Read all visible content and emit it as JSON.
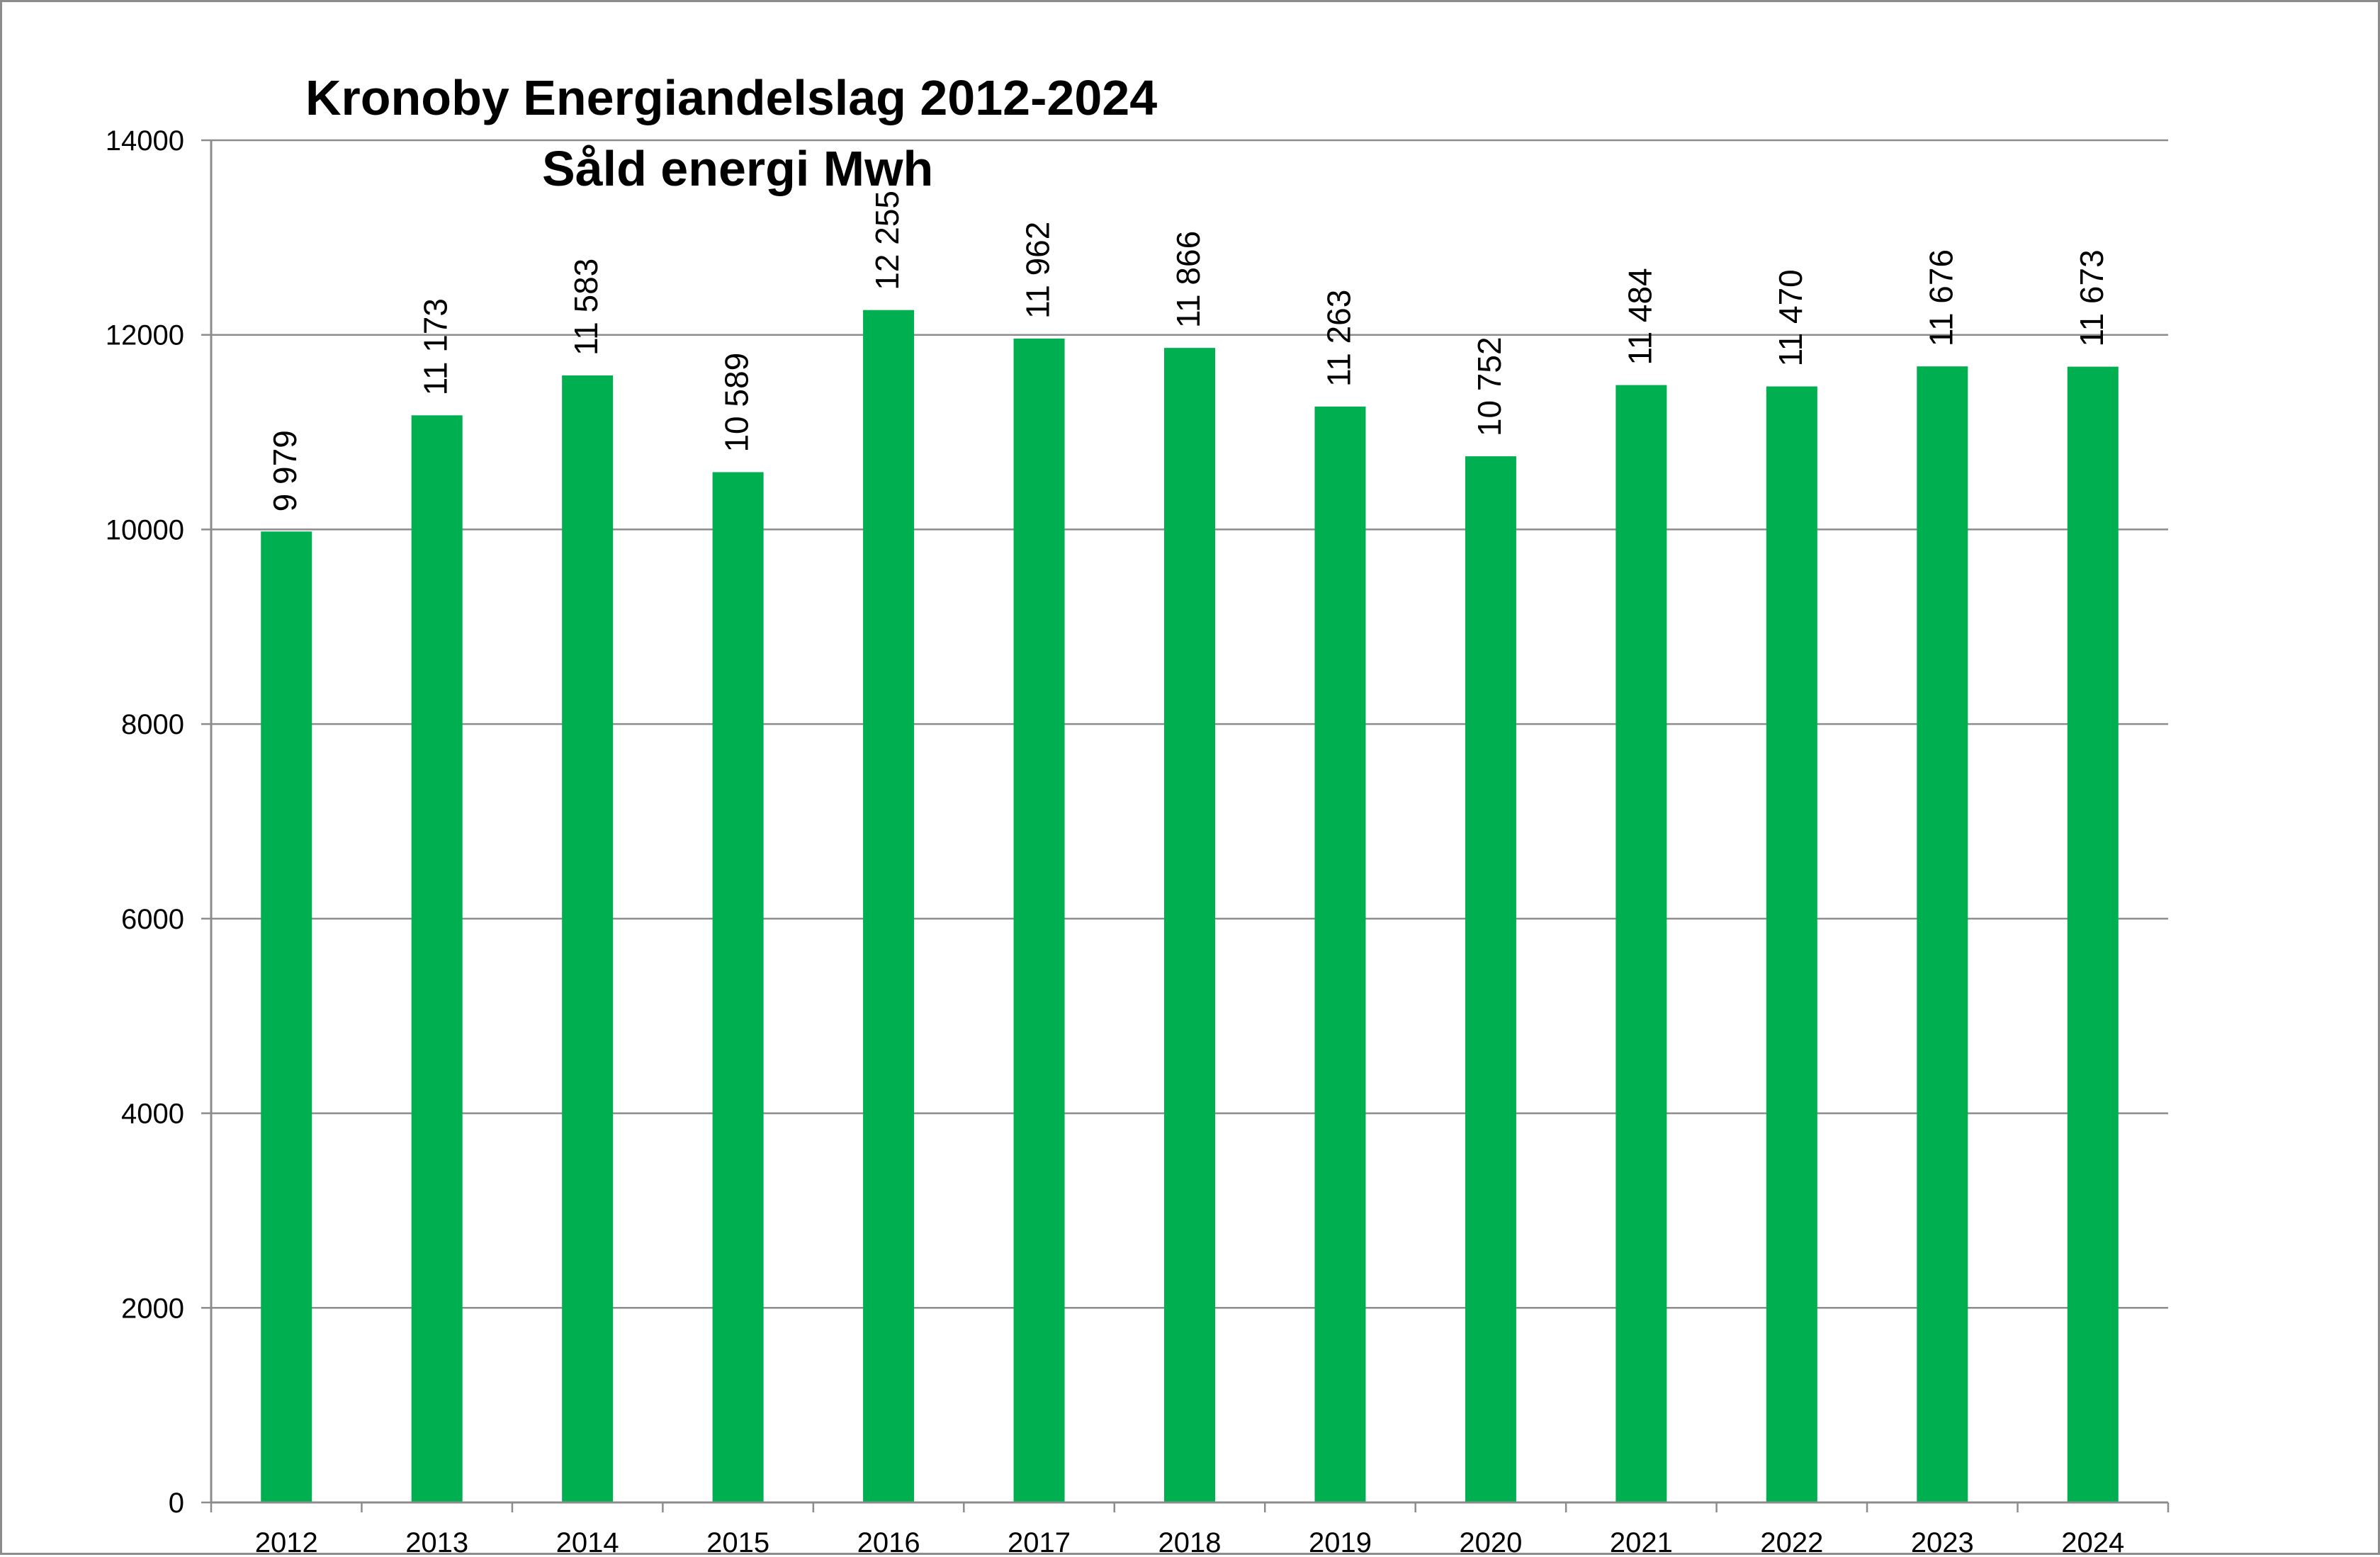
{
  "chart_data": {
    "type": "bar",
    "title": "Kronoby Energiandelslag  2012-2024",
    "subtitle": "Såld energi Mwh",
    "xlabel": "",
    "ylabel": "",
    "categories": [
      "2012",
      "2013",
      "2014",
      "2015",
      "2016",
      "2017",
      "2018",
      "2019",
      "2020",
      "2021",
      "2022",
      "2023",
      "2024"
    ],
    "values": [
      9979,
      11173,
      11583,
      10589,
      12255,
      11962,
      11866,
      11263,
      10752,
      11484,
      11470,
      11676,
      11673
    ],
    "data_labels": [
      "9 979",
      "11 173",
      "11 583",
      "10 589",
      "12 255",
      "11 962",
      "11 866",
      "11 263",
      "10 752",
      "11 484",
      "11 470",
      "11 676",
      "11 673"
    ],
    "ylim": [
      0,
      14000
    ],
    "yticks": [
      0,
      2000,
      4000,
      6000,
      8000,
      10000,
      12000,
      14000
    ],
    "grid": true,
    "legend": "none",
    "colors": {
      "bar": "#00b050",
      "grid": "#8c8c8c",
      "axis": "#8c8c8c",
      "text": "#000000"
    }
  }
}
